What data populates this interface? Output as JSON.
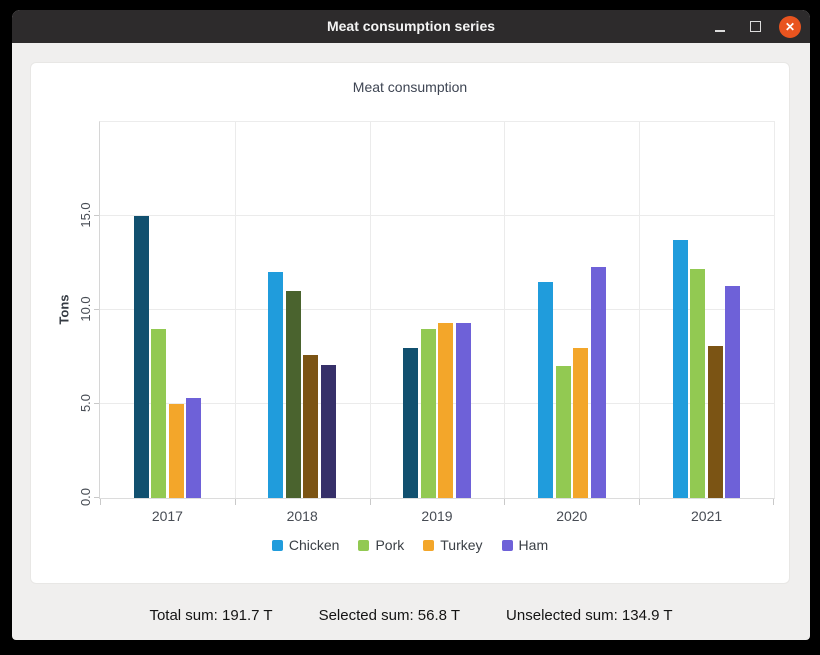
{
  "window": {
    "title": "Meat consumption series",
    "controls": {
      "minimize_label": "minimize",
      "maximize_label": "maximize",
      "close_glyph": "✕"
    }
  },
  "chart_data": {
    "type": "bar",
    "title": "Meat consumption",
    "ylabel": "Tons",
    "xlabel": "",
    "categories": [
      "2017",
      "2018",
      "2019",
      "2020",
      "2021"
    ],
    "yticks": [
      0.0,
      5.0,
      10.0,
      15.0
    ],
    "ylim": [
      0,
      20
    ],
    "grid": true,
    "legend_position": "bottom",
    "series": [
      {
        "name": "Chicken",
        "color": "#209cdc",
        "selected_color": "#11506f",
        "values": [
          15.0,
          12.0,
          8.0,
          11.5,
          13.7
        ],
        "selected": [
          true,
          false,
          true,
          false,
          false
        ]
      },
      {
        "name": "Pork",
        "color": "#92c952",
        "selected_color": "#4a632e",
        "values": [
          9.0,
          11.0,
          9.0,
          7.0,
          12.2
        ],
        "selected": [
          false,
          true,
          false,
          false,
          false
        ]
      },
      {
        "name": "Turkey",
        "color": "#f3a62a",
        "selected_color": "#7b5414",
        "values": [
          5.0,
          7.6,
          9.3,
          8.0,
          8.1
        ],
        "selected": [
          false,
          true,
          false,
          false,
          true
        ]
      },
      {
        "name": "Ham",
        "color": "#6e61d8",
        "selected_color": "#363069",
        "values": [
          5.3,
          7.1,
          9.3,
          12.3,
          11.3
        ],
        "selected": [
          false,
          true,
          false,
          false,
          false
        ]
      }
    ]
  },
  "footer": {
    "total": "Total sum: 191.7 T",
    "selected": "Selected sum: 56.8 T",
    "unselected": "Unselected sum: 134.9 T"
  }
}
